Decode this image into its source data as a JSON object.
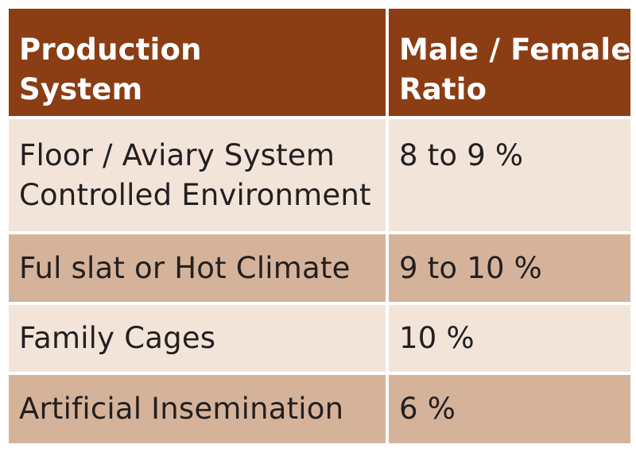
{
  "table": {
    "header": {
      "col1": [
        "Production",
        "System"
      ],
      "col2": [
        "Male / Female",
        "Ratio"
      ]
    },
    "rows": [
      {
        "system": [
          "Floor / Aviary System",
          "Controlled Environment"
        ],
        "ratio": "8 to 9 %"
      },
      {
        "system": [
          "Ful slat or Hot Climate"
        ],
        "ratio": "9 to 10 %"
      },
      {
        "system": [
          "Family Cages"
        ],
        "ratio": "10 %"
      },
      {
        "system": [
          "Artificial Insemination"
        ],
        "ratio": "6 %"
      }
    ],
    "colors": {
      "header_bg": "#8b3d14",
      "header_text": "#ffffff",
      "row_light": "#f2e4d8",
      "row_dark": "#d5b39a",
      "body_text": "#231f20"
    }
  }
}
